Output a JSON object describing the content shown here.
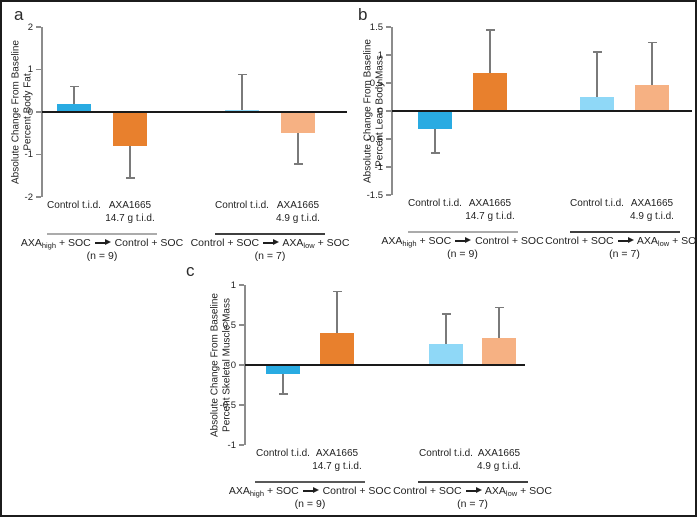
{
  "figure": {
    "background": "#ffffff",
    "border_color": "#1c1c1c"
  },
  "colors": {
    "bar_blue": "#29ABE2",
    "bar_orange": "#E8802D",
    "bar_light_blue": "#8FD8F7",
    "bar_light_orange": "#F6B183",
    "error_bar": "#7a7a7a",
    "axis": "#8c8c8c",
    "zero_line": "#1a1a1a",
    "text": "#1f1f1f"
  },
  "chart_data": [
    {
      "type": "bar",
      "panel_label": "a",
      "ylabel": "Absolute Change From Baseline Percent Body Fat",
      "ylabel_lines": [
        "Absolute Change From Baseline",
        "Percent Body Fat"
      ],
      "ylim": [
        -2,
        2
      ],
      "ytick_labels": [
        "2",
        "1",
        "0",
        "-1",
        "-2"
      ],
      "grid": false,
      "legend": "none",
      "bars": [
        {
          "label_lines": [
            "Control t.i.d."
          ],
          "value": 0.2,
          "error_tip": 0.6,
          "color_key": "bar_blue"
        },
        {
          "label_lines": [
            "AXA1665",
            "14.7 g t.i.d."
          ],
          "value": -0.8,
          "error_tip": -1.55,
          "color_key": "bar_orange"
        },
        {
          "label_lines": [
            "Control t.i.d."
          ],
          "value": 0.05,
          "error_tip": 0.88,
          "color_key": "bar_light_blue"
        },
        {
          "label_lines": [
            "AXA1665",
            "4.9 g t.i.d."
          ],
          "value": -0.5,
          "error_tip": -1.22,
          "color_key": "bar_light_orange"
        }
      ],
      "groups": [
        {
          "bar_indexes": [
            0,
            1
          ],
          "segments": [
            {
              "text": "AXA"
            },
            {
              "text": "high",
              "sub": true
            },
            {
              "text": " + SOC "
            },
            {
              "text": "→",
              "arrow": true
            },
            {
              "text": " Control + SOC"
            }
          ],
          "n_label": "(n = 9)",
          "line_color": "#ababab"
        },
        {
          "bar_indexes": [
            2,
            3
          ],
          "segments": [
            {
              "text": "Control + SOC "
            },
            {
              "text": "→",
              "arrow": true
            },
            {
              "text": " AXA"
            },
            {
              "text": "low",
              "sub": true
            },
            {
              "text": " + SOC"
            }
          ],
          "n_label": "(n = 7)",
          "line_color": "#3f3f3f"
        }
      ]
    },
    {
      "type": "bar",
      "panel_label": "b",
      "ylabel": "Absolute Change From Baseline Percent Lean Body Mass",
      "ylabel_lines": [
        "Absolute Change From Baseline",
        "Percent Lean Body Mass"
      ],
      "ylim": [
        -1.5,
        1.5
      ],
      "ytick_labels": [
        "1.5",
        "1",
        "0.5",
        "0",
        "-0.5",
        "-1",
        "-1.5"
      ],
      "grid": false,
      "legend": "none",
      "bars": [
        {
          "label_lines": [
            "Control t.i.d."
          ],
          "value": -0.33,
          "error_tip": -0.75,
          "color_key": "bar_blue"
        },
        {
          "label_lines": [
            "AXA1665",
            "14.7 g t.i.d."
          ],
          "value": 0.68,
          "error_tip": 1.45,
          "color_key": "bar_orange"
        },
        {
          "label_lines": [
            "Control t.i.d."
          ],
          "value": 0.25,
          "error_tip": 1.05,
          "color_key": "bar_light_blue"
        },
        {
          "label_lines": [
            "AXA1665",
            "4.9 g t.i.d."
          ],
          "value": 0.47,
          "error_tip": 1.22,
          "color_key": "bar_light_orange"
        }
      ],
      "groups": [
        {
          "bar_indexes": [
            0,
            1
          ],
          "segments": [
            {
              "text": "AXA"
            },
            {
              "text": "high",
              "sub": true
            },
            {
              "text": " + SOC "
            },
            {
              "text": "→",
              "arrow": true
            },
            {
              "text": " Control + SOC"
            }
          ],
          "n_label": "(n = 9)",
          "line_color": "#ababab"
        },
        {
          "bar_indexes": [
            2,
            3
          ],
          "segments": [
            {
              "text": "Control + SOC "
            },
            {
              "text": "→",
              "arrow": true
            },
            {
              "text": " AXA"
            },
            {
              "text": "low",
              "sub": true
            },
            {
              "text": " + SOC"
            }
          ],
          "n_label": "(n = 7)",
          "line_color": "#3f3f3f"
        }
      ]
    },
    {
      "type": "bar",
      "panel_label": "c",
      "ylabel": "Absolute Change From Baseline Percent Skeletal Muscle Mass",
      "ylabel_lines": [
        "Absolute Change From Baseline",
        "Percent Skeletal Muscle Mass"
      ],
      "ylim": [
        -1,
        1
      ],
      "ytick_labels": [
        "1",
        "0.5",
        "0",
        "-0.5",
        "-1"
      ],
      "grid": false,
      "legend": "none",
      "bars": [
        {
          "label_lines": [
            "Control t.i.d."
          ],
          "value": -0.11,
          "error_tip": -0.36,
          "color_key": "bar_blue"
        },
        {
          "label_lines": [
            "AXA1665",
            "14.7 g t.i.d."
          ],
          "value": 0.4,
          "error_tip": 0.92,
          "color_key": "bar_orange"
        },
        {
          "label_lines": [
            "Control t.i.d."
          ],
          "value": 0.26,
          "error_tip": 0.64,
          "color_key": "bar_light_blue"
        },
        {
          "label_lines": [
            "AXA1665",
            "4.9 g t.i.d."
          ],
          "value": 0.34,
          "error_tip": 0.72,
          "color_key": "bar_light_orange"
        }
      ],
      "groups": [
        {
          "bar_indexes": [
            0,
            1
          ],
          "segments": [
            {
              "text": "AXA"
            },
            {
              "text": "high",
              "sub": true
            },
            {
              "text": " + SOC "
            },
            {
              "text": "→",
              "arrow": true
            },
            {
              "text": " Control + SOC"
            }
          ],
          "n_label": "(n = 9)",
          "line_color": "#595959"
        },
        {
          "bar_indexes": [
            2,
            3
          ],
          "segments": [
            {
              "text": "Control + SOC "
            },
            {
              "text": "→",
              "arrow": true
            },
            {
              "text": " AXA"
            },
            {
              "text": "low",
              "sub": true
            },
            {
              "text": " + SOC"
            }
          ],
          "n_label": "(n = 7)",
          "line_color": "#3f3f3f"
        }
      ]
    }
  ]
}
